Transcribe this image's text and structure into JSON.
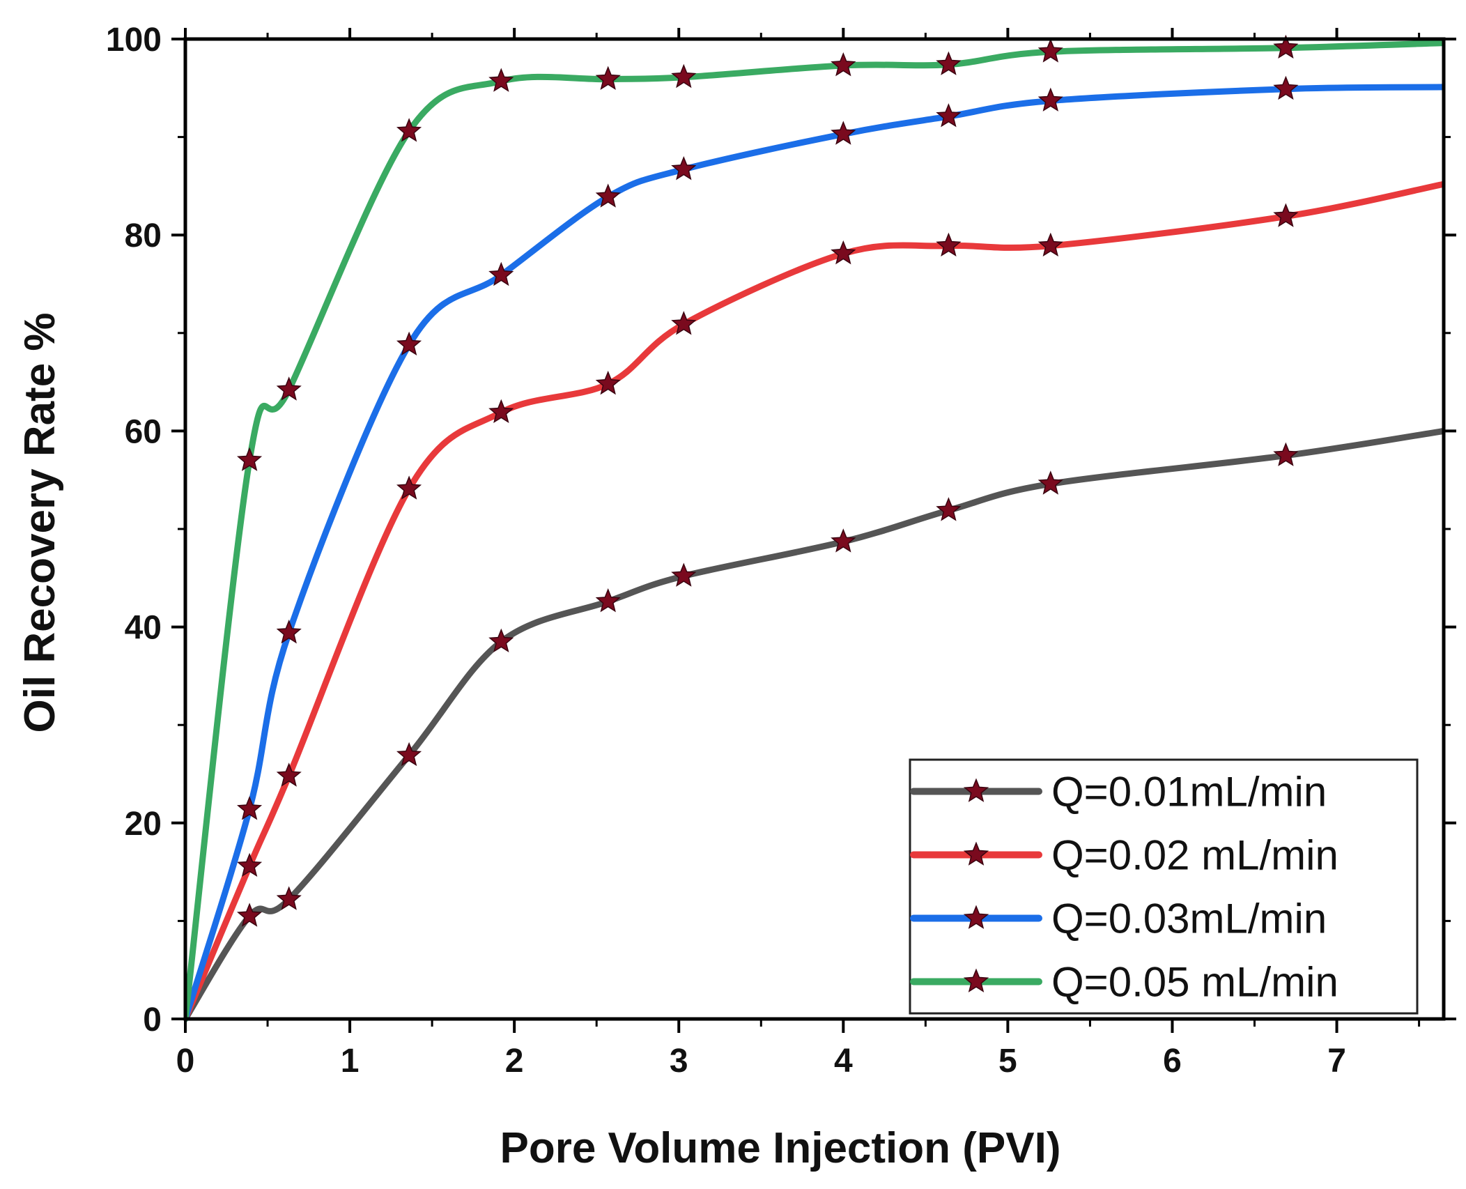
{
  "chart_data": {
    "type": "line",
    "title": "",
    "xlabel": "Pore Volume Injection (PVI)",
    "ylabel": "Oil Recovery Rate %",
    "xlim": [
      0,
      7.65
    ],
    "ylim": [
      0,
      100
    ],
    "xticks": [
      0,
      1,
      2,
      3,
      4,
      5,
      6,
      7
    ],
    "yticks": [
      0,
      20,
      40,
      60,
      80,
      100
    ],
    "grid": false,
    "legend": "bottom-right",
    "marker_color": "#7a0a1e",
    "series": [
      {
        "name": "Q=0.01mL/min",
        "color": "#555555",
        "x": [
          0,
          0.39,
          0.63,
          1.36,
          1.92,
          2.57,
          3.03,
          4.0,
          4.64,
          5.26,
          6.69,
          7.65
        ],
        "y": [
          0,
          10.5,
          12.2,
          26.9,
          38.5,
          42.6,
          45.2,
          48.7,
          51.9,
          54.6,
          57.5,
          60.0
        ]
      },
      {
        "name": "Q=0.02 mL/min",
        "color": "#e8393b",
        "x": [
          0,
          0.39,
          0.63,
          1.36,
          1.92,
          2.57,
          3.03,
          4.0,
          4.64,
          5.26,
          6.69,
          7.65
        ],
        "y": [
          0,
          15.6,
          24.8,
          54.1,
          61.9,
          64.8,
          70.9,
          78.1,
          78.9,
          78.9,
          81.9,
          85.2
        ]
      },
      {
        "name": "Q=0.03mL/min",
        "color": "#1b6ee8",
        "x": [
          0,
          0.39,
          0.63,
          1.36,
          1.92,
          2.57,
          3.03,
          4.0,
          4.64,
          5.26,
          6.69,
          7.65
        ],
        "y": [
          0,
          21.4,
          39.4,
          68.8,
          75.9,
          83.9,
          86.7,
          90.3,
          92.1,
          93.7,
          94.9,
          95.1
        ]
      },
      {
        "name": "Q=0.05 mL/min",
        "color": "#3aaa62",
        "x": [
          0,
          0.39,
          0.63,
          1.36,
          1.92,
          2.57,
          3.03,
          4.0,
          4.64,
          5.26,
          6.69,
          7.65
        ],
        "y": [
          0,
          57.0,
          64.2,
          90.6,
          95.7,
          95.9,
          96.1,
          97.3,
          97.4,
          98.7,
          99.1,
          99.6
        ]
      }
    ]
  }
}
